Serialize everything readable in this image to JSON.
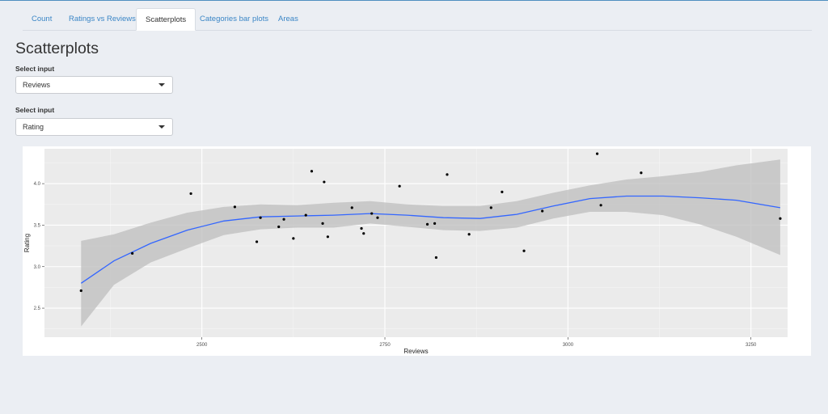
{
  "tabs": [
    {
      "label": "Count",
      "active": false
    },
    {
      "label": "Ratings vs Reviews",
      "active": false
    },
    {
      "label": "Scatterplots",
      "active": true
    },
    {
      "label": "Categories bar plots",
      "active": false
    },
    {
      "label": "Areas",
      "active": false
    }
  ],
  "page": {
    "title": "Scatterplots",
    "select1": {
      "label": "Select input",
      "value": "Reviews"
    },
    "select2": {
      "label": "Select input",
      "value": "Rating"
    }
  },
  "colors": {
    "accent": "#3b86c6",
    "smooth_line": "#3366ff",
    "ribbon": "#bdbdbd",
    "panel_bg": "#ebebeb",
    "points": "#000000"
  },
  "chart_data": {
    "type": "scatter",
    "xlabel": "Reviews",
    "ylabel": "Rating",
    "xlim": [
      2285,
      3300
    ],
    "ylim": [
      2.15,
      4.42
    ],
    "xticks": [
      2500,
      2750,
      3000,
      3250
    ],
    "yticks": [
      2.5,
      3.0,
      3.5,
      4.0
    ],
    "ytick_labels": [
      "2.5",
      "3.0",
      "3.5",
      "4.0"
    ],
    "grid": true,
    "points": [
      {
        "x": 2335,
        "y": 2.71
      },
      {
        "x": 2405,
        "y": 3.16
      },
      {
        "x": 2485,
        "y": 3.88
      },
      {
        "x": 2545,
        "y": 3.72
      },
      {
        "x": 2575,
        "y": 3.3
      },
      {
        "x": 2580,
        "y": 3.59
      },
      {
        "x": 2605,
        "y": 3.48
      },
      {
        "x": 2612,
        "y": 3.57
      },
      {
        "x": 2625,
        "y": 3.34
      },
      {
        "x": 2642,
        "y": 3.62
      },
      {
        "x": 2650,
        "y": 4.15
      },
      {
        "x": 2665,
        "y": 3.52
      },
      {
        "x": 2667,
        "y": 4.02
      },
      {
        "x": 2672,
        "y": 3.36
      },
      {
        "x": 2705,
        "y": 3.71
      },
      {
        "x": 2718,
        "y": 3.46
      },
      {
        "x": 2721,
        "y": 3.4
      },
      {
        "x": 2732,
        "y": 3.64
      },
      {
        "x": 2740,
        "y": 3.59
      },
      {
        "x": 2770,
        "y": 3.97
      },
      {
        "x": 2808,
        "y": 3.51
      },
      {
        "x": 2818,
        "y": 3.52
      },
      {
        "x": 2820,
        "y": 3.11
      },
      {
        "x": 2835,
        "y": 4.11
      },
      {
        "x": 2865,
        "y": 3.39
      },
      {
        "x": 2895,
        "y": 3.71
      },
      {
        "x": 2910,
        "y": 3.9
      },
      {
        "x": 2940,
        "y": 3.19
      },
      {
        "x": 2965,
        "y": 3.67
      },
      {
        "x": 3040,
        "y": 4.36
      },
      {
        "x": 3045,
        "y": 3.74
      },
      {
        "x": 3100,
        "y": 4.13
      },
      {
        "x": 3290,
        "y": 3.58
      }
    ],
    "smooth": {
      "x": [
        2335,
        2380,
        2430,
        2480,
        2530,
        2580,
        2630,
        2680,
        2730,
        2780,
        2830,
        2880,
        2930,
        2980,
        3030,
        3080,
        3130,
        3180,
        3230,
        3290
      ],
      "y": [
        2.8,
        3.07,
        3.28,
        3.44,
        3.55,
        3.6,
        3.61,
        3.62,
        3.64,
        3.62,
        3.59,
        3.58,
        3.63,
        3.73,
        3.82,
        3.85,
        3.85,
        3.83,
        3.8,
        3.71
      ],
      "lower": [
        2.28,
        2.78,
        3.05,
        3.22,
        3.38,
        3.45,
        3.47,
        3.47,
        3.52,
        3.48,
        3.44,
        3.43,
        3.47,
        3.58,
        3.66,
        3.66,
        3.62,
        3.51,
        3.36,
        3.14
      ],
      "upper": [
        3.31,
        3.39,
        3.53,
        3.65,
        3.72,
        3.75,
        3.74,
        3.77,
        3.79,
        3.75,
        3.73,
        3.73,
        3.79,
        3.89,
        3.98,
        4.05,
        4.09,
        4.14,
        4.22,
        4.29
      ]
    }
  }
}
